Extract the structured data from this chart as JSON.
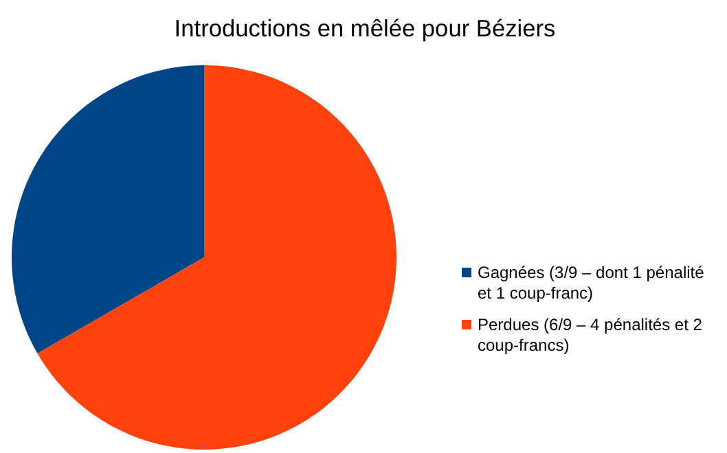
{
  "chart_data": {
    "type": "pie",
    "title": "Introductions en mêlée pour Béziers",
    "categories": [
      "Gagnées (3/9 – dont 1 pénalité et 1 coup-franc)",
      "Perdues (6/9 – 4 pénalités et 2 coup-francs)"
    ],
    "values": [
      3,
      6
    ],
    "colors": [
      "#004586",
      "#ff420e"
    ],
    "legend": "right"
  }
}
